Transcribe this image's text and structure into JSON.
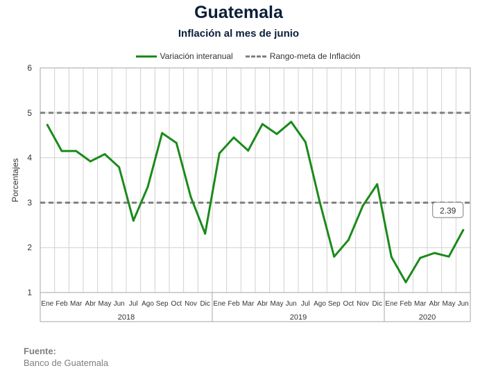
{
  "chart_data": {
    "type": "line",
    "title": "Guatemala",
    "subtitle": "Inflación al mes de junio",
    "ylabel": "Porcentajes",
    "ylim": [
      1,
      6
    ],
    "yticks": [
      "1",
      "2",
      "3",
      "4",
      "5",
      "6"
    ],
    "grid": true,
    "legend_position": "top-center",
    "months": [
      "Ene",
      "Feb",
      "Mar",
      "Abr",
      "May",
      "Jun",
      "Jul",
      "Ago",
      "Sep",
      "Oct",
      "Nov",
      "Dic",
      "Ene",
      "Feb",
      "Mar",
      "Abr",
      "May",
      "Jun",
      "Jul",
      "Ago",
      "Sep",
      "Oct",
      "Nov",
      "Dic",
      "Ene",
      "Feb",
      "Mar",
      "Abr",
      "May",
      "Jun"
    ],
    "years": [
      {
        "label": "2018",
        "months": 12
      },
      {
        "label": "2019",
        "months": 12
      },
      {
        "label": "2020",
        "months": 6
      }
    ],
    "series": [
      {
        "name": "Variación interanual",
        "color": "#1a8a1a",
        "style": "solid",
        "values": [
          4.73,
          4.15,
          4.15,
          3.92,
          4.08,
          3.79,
          2.6,
          3.35,
          4.55,
          4.33,
          3.13,
          2.31,
          4.1,
          4.45,
          4.16,
          4.75,
          4.53,
          4.8,
          4.35,
          3.01,
          1.8,
          2.17,
          2.93,
          3.41,
          1.79,
          1.23,
          1.77,
          1.88,
          1.8,
          2.39
        ]
      },
      {
        "name": "Rango-meta de Inflación",
        "color": "#808080",
        "style": "dashed",
        "levels": [
          3,
          5
        ]
      }
    ],
    "annotation": {
      "text": "2.39",
      "month_index": 29
    }
  },
  "source": {
    "label": "Fuente:",
    "text": "Banco de Guatemala"
  }
}
